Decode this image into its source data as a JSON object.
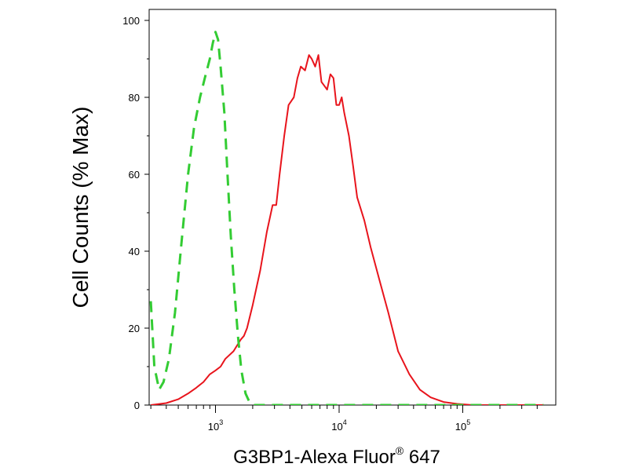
{
  "chart_data": {
    "type": "line",
    "xlabel": "G3BP1-Alexa Fluor",
    "xlabel_superscript": "®",
    "xlabel_suffix": " 647",
    "ylabel": "Cell Counts (% Max)",
    "x_scale": "log",
    "xlim": [
      300,
      450000
    ],
    "ylim": [
      0,
      105
    ],
    "grid": false,
    "legend": "none",
    "y_ticks": [
      {
        "value": 0,
        "label": "0"
      },
      {
        "value": 20,
        "label": "20"
      },
      {
        "value": 40,
        "label": "40"
      },
      {
        "value": 60,
        "label": "60"
      },
      {
        "value": 80,
        "label": "80"
      },
      {
        "value": 100,
        "label": "100"
      }
    ],
    "x_ticks": [
      {
        "value": 1000,
        "base": "10",
        "exp": "3"
      },
      {
        "value": 10000,
        "base": "10",
        "exp": "4"
      },
      {
        "value": 100000,
        "base": "10",
        "exp": "5"
      }
    ],
    "series": [
      {
        "color": "#e8141c",
        "dash": "solid",
        "x": [
          300,
          400,
          500,
          600,
          700,
          800,
          900,
          1000,
          1100,
          1200,
          1400,
          1600,
          1700,
          1800,
          2000,
          2300,
          2600,
          2900,
          3100,
          3300,
          3600,
          3900,
          4300,
          4600,
          4900,
          5300,
          5700,
          6000,
          6400,
          6800,
          7200,
          7600,
          8000,
          8500,
          9000,
          9500,
          10000,
          10500,
          11000,
          12000,
          13000,
          14000,
          16000,
          18000,
          21000,
          25000,
          30000,
          37000,
          45000,
          55000,
          70000,
          90000,
          120000,
          200000,
          300000,
          450000
        ],
        "y": [
          0,
          0.5,
          1.5,
          3,
          4.5,
          6,
          8,
          9,
          10,
          12,
          14,
          17,
          18,
          20,
          26,
          35,
          45,
          52,
          52,
          60,
          70,
          78,
          80,
          85,
          88,
          87,
          91,
          90,
          88,
          91,
          84,
          83,
          82,
          86,
          85,
          78,
          78,
          80,
          76,
          70,
          62,
          54,
          48,
          41,
          33,
          24,
          14,
          8,
          4,
          2,
          0.8,
          0.3,
          0,
          0,
          0,
          0
        ]
      },
      {
        "color": "#33cc33",
        "dash": "dashed",
        "x": [
          300,
          320,
          350,
          380,
          420,
          470,
          530,
          600,
          670,
          750,
          820,
          900,
          950,
          1000,
          1050,
          1100,
          1180,
          1250,
          1330,
          1420,
          1520,
          1620,
          1750,
          1900,
          2050,
          2300,
          3000,
          5000,
          10000,
          50000,
          450000
        ],
        "y": [
          27,
          10,
          4,
          6,
          12,
          24,
          42,
          60,
          72,
          80,
          85,
          90,
          94,
          97,
          95,
          88,
          76,
          60,
          44,
          30,
          18,
          9,
          3,
          0.5,
          0,
          0,
          0,
          0,
          0,
          0,
          0
        ]
      }
    ]
  }
}
